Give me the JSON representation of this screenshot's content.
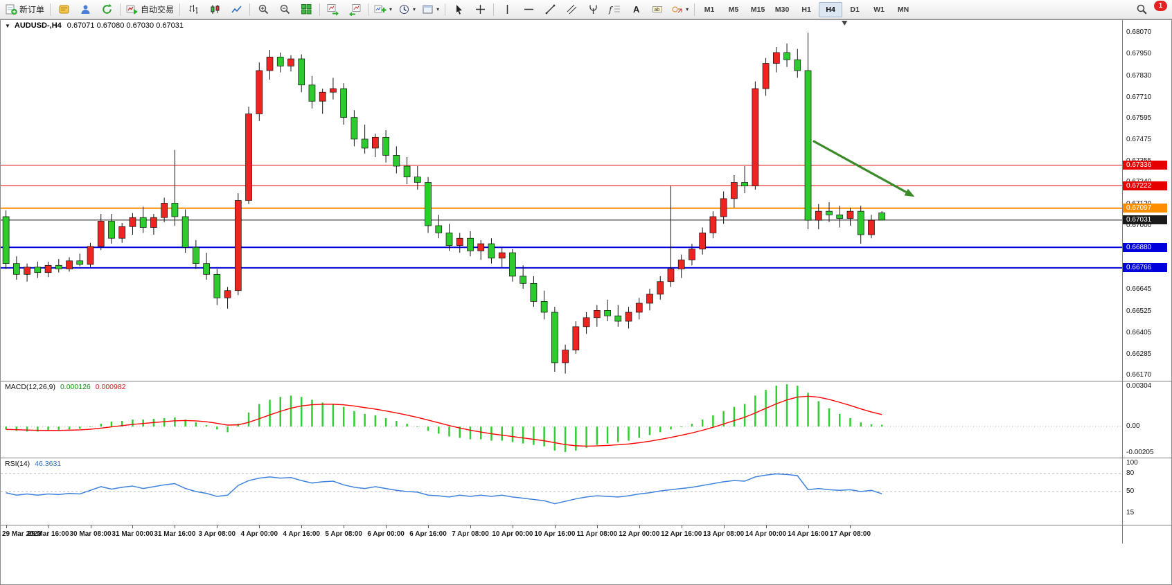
{
  "window": {
    "symbol": "AUDUSD-,H4",
    "quotes": "0.67071 0.67080 0.67030 0.67031"
  },
  "toolbar": {
    "items": [
      {
        "name": "new-order-button",
        "icon": "new-order",
        "label": "新订单"
      },
      {
        "sep": true
      },
      {
        "name": "metaeditor-button",
        "icon": "metaeditor"
      },
      {
        "name": "community-button",
        "icon": "community"
      },
      {
        "name": "refresh-button",
        "icon": "refresh"
      },
      {
        "sep": true
      },
      {
        "name": "auto-trading-button",
        "icon": "autotrade",
        "label": "自动交易"
      },
      {
        "sep": true
      },
      {
        "name": "bar-chart-button",
        "icon": "bars"
      },
      {
        "name": "candlestick-chart-button",
        "icon": "candles"
      },
      {
        "name": "line-chart-button",
        "icon": "linechart"
      },
      {
        "sep": true
      },
      {
        "name": "zoom-in-button",
        "icon": "zoomin"
      },
      {
        "name": "zoom-out-button",
        "icon": "zoomout"
      },
      {
        "name": "tile-windows-button",
        "icon": "tile"
      },
      {
        "sep": true
      },
      {
        "name": "auto-scroll-button",
        "icon": "autoscroll"
      },
      {
        "name": "chart-shift-button",
        "icon": "chartshift"
      },
      {
        "sep": true
      },
      {
        "name": "indicators-button",
        "icon": "indicators",
        "caret": true
      },
      {
        "name": "periods-button",
        "icon": "clock",
        "caret": true
      },
      {
        "name": "templates-button",
        "icon": "template",
        "caret": true
      },
      {
        "sep": true
      },
      {
        "name": "cursor-button",
        "icon": "cursor"
      },
      {
        "name": "crosshair-button",
        "icon": "crosshair"
      },
      {
        "sep": true
      },
      {
        "name": "vertical-line-button",
        "icon": "vline"
      },
      {
        "name": "horizontal-line-button",
        "icon": "hline"
      },
      {
        "name": "trendline-button",
        "icon": "trendline"
      },
      {
        "name": "channel-button",
        "icon": "channel"
      },
      {
        "name": "pitchfork-button",
        "icon": "pitchfork"
      },
      {
        "name": "fibonacci-button",
        "icon": "fibo"
      },
      {
        "name": "text-button",
        "icon": "text"
      },
      {
        "name": "text-label-button",
        "icon": "label"
      },
      {
        "name": "shapes-button",
        "icon": "shapes",
        "caret": true
      },
      {
        "sep": true
      }
    ],
    "timeframes": [
      "M1",
      "M5",
      "M15",
      "M30",
      "H1",
      "H4",
      "D1",
      "W1",
      "MN"
    ],
    "active_timeframe": "H4",
    "badge_count": "1"
  },
  "colors": {
    "up": "#ee2421",
    "down": "#2ecb2e",
    "wick": "#111111",
    "macd_hist": "#32cd32",
    "macd_signal": "#ff0000",
    "rsi": "#3c82dc",
    "arrow": "#3a8a28",
    "level_dash": "#b8b8b8"
  },
  "chart_data": {
    "type": "candlestick",
    "symbol": "AUDUSD",
    "timeframe": "H4",
    "price_view_max": 0.6814,
    "price_view_min": 0.6614,
    "candle_area_fraction": 0.79,
    "shift_marker_xf": 0.752,
    "price_axis_labels": [
      0.6807,
      0.6795,
      0.6783,
      0.6771,
      0.67595,
      0.67475,
      0.67355,
      0.6724,
      0.6712,
      0.67,
      0.6688,
      0.66765,
      0.66645,
      0.66525,
      0.66405,
      0.66285,
      0.6617
    ],
    "price_tags": [
      {
        "p": 0.67336,
        "c": "#e60000",
        "lw": 1
      },
      {
        "p": 0.67222,
        "c": "#e60000",
        "lw": 1
      },
      {
        "p": 0.67097,
        "c": "#ff8d00",
        "lw": 2
      },
      {
        "p": 0.67031,
        "c": "#1a1a1a",
        "lw": 1
      },
      {
        "p": 0.6688,
        "c": "#0000dd",
        "lw": 2
      },
      {
        "p": 0.66766,
        "c": "#0000dd",
        "lw": 2
      }
    ],
    "candles": [
      [
        0.6705,
        0.67085,
        0.6676,
        0.6679
      ],
      [
        0.6679,
        0.6683,
        0.667,
        0.6673
      ],
      [
        0.6673,
        0.6679,
        0.6669,
        0.6677
      ],
      [
        0.6677,
        0.668,
        0.6671,
        0.6674
      ],
      [
        0.6674,
        0.668,
        0.66715,
        0.6678
      ],
      [
        0.6678,
        0.66815,
        0.6674,
        0.6676
      ],
      [
        0.6676,
        0.66825,
        0.66745,
        0.66805
      ],
      [
        0.66805,
        0.66845,
        0.66775,
        0.66785
      ],
      [
        0.66785,
        0.66905,
        0.6677,
        0.66885
      ],
      [
        0.66885,
        0.67065,
        0.66865,
        0.67025
      ],
      [
        0.67025,
        0.67065,
        0.669,
        0.6693
      ],
      [
        0.6693,
        0.67015,
        0.66905,
        0.66995
      ],
      [
        0.66995,
        0.6707,
        0.6695,
        0.67045
      ],
      [
        0.67045,
        0.67105,
        0.6696,
        0.6699
      ],
      [
        0.6699,
        0.67065,
        0.6695,
        0.67045
      ],
      [
        0.67045,
        0.67155,
        0.6702,
        0.67125
      ],
      [
        0.67125,
        0.6742,
        0.67,
        0.6705
      ],
      [
        0.6705,
        0.6709,
        0.6685,
        0.6688
      ],
      [
        0.6688,
        0.6692,
        0.6676,
        0.6679
      ],
      [
        0.6679,
        0.6685,
        0.667,
        0.6673
      ],
      [
        0.6673,
        0.6676,
        0.6656,
        0.666
      ],
      [
        0.666,
        0.6666,
        0.6654,
        0.6664
      ],
      [
        0.6664,
        0.6718,
        0.66615,
        0.6714
      ],
      [
        0.6714,
        0.6766,
        0.6712,
        0.6762
      ],
      [
        0.6762,
        0.67905,
        0.6758,
        0.6786
      ],
      [
        0.6786,
        0.67975,
        0.6781,
        0.67935
      ],
      [
        0.67935,
        0.6796,
        0.6785,
        0.67885
      ],
      [
        0.67885,
        0.67945,
        0.67855,
        0.67925
      ],
      [
        0.67925,
        0.6795,
        0.6774,
        0.6778
      ],
      [
        0.6778,
        0.6783,
        0.6765,
        0.6769
      ],
      [
        0.6769,
        0.6776,
        0.6762,
        0.6774
      ],
      [
        0.6774,
        0.6782,
        0.677,
        0.6776
      ],
      [
        0.6776,
        0.6779,
        0.6756,
        0.676
      ],
      [
        0.676,
        0.6764,
        0.6744,
        0.6748
      ],
      [
        0.6748,
        0.6756,
        0.674,
        0.6743
      ],
      [
        0.6743,
        0.6751,
        0.6738,
        0.6749
      ],
      [
        0.6749,
        0.6753,
        0.6735,
        0.6739
      ],
      [
        0.6739,
        0.6744,
        0.6729,
        0.6733
      ],
      [
        0.6733,
        0.6738,
        0.6723,
        0.6727
      ],
      [
        0.6727,
        0.6733,
        0.672,
        0.6724
      ],
      [
        0.6724,
        0.6727,
        0.6696,
        0.67
      ],
      [
        0.67,
        0.6706,
        0.6693,
        0.6696
      ],
      [
        0.6696,
        0.6701,
        0.6686,
        0.6689
      ],
      [
        0.6689,
        0.6696,
        0.6685,
        0.6693
      ],
      [
        0.6693,
        0.6697,
        0.6683,
        0.6686
      ],
      [
        0.6686,
        0.6692,
        0.6681,
        0.669
      ],
      [
        0.669,
        0.6693,
        0.6679,
        0.6682
      ],
      [
        0.6682,
        0.6688,
        0.6677,
        0.6685
      ],
      [
        0.6685,
        0.6687,
        0.6669,
        0.6672
      ],
      [
        0.6672,
        0.6678,
        0.6665,
        0.6668
      ],
      [
        0.6668,
        0.6672,
        0.6655,
        0.6658
      ],
      [
        0.6658,
        0.6664,
        0.6648,
        0.6652
      ],
      [
        0.6652,
        0.6655,
        0.6619,
        0.6624
      ],
      [
        0.6624,
        0.6634,
        0.6618,
        0.6631
      ],
      [
        0.6631,
        0.6647,
        0.6629,
        0.6644
      ],
      [
        0.6644,
        0.6652,
        0.664,
        0.6649
      ],
      [
        0.6649,
        0.6656,
        0.6644,
        0.6653
      ],
      [
        0.6653,
        0.6659,
        0.6647,
        0.665
      ],
      [
        0.665,
        0.6656,
        0.6644,
        0.6647
      ],
      [
        0.6647,
        0.6655,
        0.6643,
        0.6652
      ],
      [
        0.6652,
        0.666,
        0.6648,
        0.6657
      ],
      [
        0.6657,
        0.6665,
        0.6653,
        0.6662
      ],
      [
        0.6662,
        0.6672,
        0.6659,
        0.6669
      ],
      [
        0.6669,
        0.6722,
        0.6666,
        0.6676
      ],
      [
        0.6676,
        0.6684,
        0.6671,
        0.6681
      ],
      [
        0.6681,
        0.669,
        0.6678,
        0.6687
      ],
      [
        0.6687,
        0.6699,
        0.6684,
        0.6696
      ],
      [
        0.6696,
        0.6708,
        0.6693,
        0.6705
      ],
      [
        0.6705,
        0.6719,
        0.6701,
        0.6715
      ],
      [
        0.6715,
        0.6728,
        0.671,
        0.6724
      ],
      [
        0.6724,
        0.6733,
        0.6718,
        0.6722
      ],
      [
        0.6722,
        0.678,
        0.672,
        0.6776
      ],
      [
        0.6776,
        0.6793,
        0.6772,
        0.679
      ],
      [
        0.679,
        0.6799,
        0.6785,
        0.6796
      ],
      [
        0.6796,
        0.6801,
        0.6788,
        0.6792
      ],
      [
        0.6792,
        0.6798,
        0.6782,
        0.6786
      ],
      [
        0.6786,
        0.6807,
        0.6698,
        0.6703
      ],
      [
        0.6703,
        0.6712,
        0.6698,
        0.6708
      ],
      [
        0.6708,
        0.6713,
        0.6702,
        0.6706
      ],
      [
        0.6706,
        0.6711,
        0.6699,
        0.6704
      ],
      [
        0.6704,
        0.671,
        0.67,
        0.6708
      ],
      [
        0.6708,
        0.6711,
        0.669,
        0.6695
      ],
      [
        0.6695,
        0.6706,
        0.6693,
        0.6703
      ],
      [
        0.67071,
        0.6708,
        0.6703,
        0.67031
      ]
    ],
    "time_labels": [
      {
        "i": 0,
        "t": "29 Mar 2023"
      },
      {
        "i": 4,
        "t": "29 Mar 16:00"
      },
      {
        "i": 8,
        "t": "30 Mar 08:00"
      },
      {
        "i": 12,
        "t": "31 Mar 00:00"
      },
      {
        "i": 16,
        "t": "31 Mar 16:00"
      },
      {
        "i": 20,
        "t": "3 Apr 08:00"
      },
      {
        "i": 24,
        "t": "4 Apr 00:00"
      },
      {
        "i": 28,
        "t": "4 Apr 16:00"
      },
      {
        "i": 32,
        "t": "5 Apr 08:00"
      },
      {
        "i": 36,
        "t": "6 Apr 00:00"
      },
      {
        "i": 40,
        "t": "6 Apr 16:00"
      },
      {
        "i": 44,
        "t": "7 Apr 08:00"
      },
      {
        "i": 48,
        "t": "10 Apr 00:00"
      },
      {
        "i": 52,
        "t": "10 Apr 16:00"
      },
      {
        "i": 56,
        "t": "11 Apr 08:00"
      },
      {
        "i": 60,
        "t": "12 Apr 00:00"
      },
      {
        "i": 64,
        "t": "12 Apr 16:00"
      },
      {
        "i": 68,
        "t": "13 Apr 08:00"
      },
      {
        "i": 72,
        "t": "14 Apr 00:00"
      },
      {
        "i": 76,
        "t": "14 Apr 16:00"
      },
      {
        "i": 80,
        "t": "17 Apr 08:00"
      }
    ],
    "arrow": {
      "x1f": 0.724,
      "p1": 0.6747,
      "x2f": 0.8145,
      "p2": 0.6716
    },
    "macd": {
      "name": "MACD(12,26,9)",
      "hist_value": "0.000126",
      "signal_value": "0.000982",
      "view_max": 0.0032,
      "view_min": -0.0022,
      "axis": [
        {
          "v": 0.00304,
          "t": "0.00304"
        },
        {
          "v": 0,
          "t": "0.00"
        },
        {
          "v": -0.00205,
          "t": "-0.00205"
        }
      ],
      "hist": [
        -0.0002,
        -0.0003,
        -0.00035,
        -0.00035,
        -0.0003,
        -0.00025,
        -0.0002,
        -0.00015,
        0.0,
        0.0002,
        0.00035,
        0.0004,
        0.0005,
        0.0005,
        0.00055,
        0.0006,
        0.00065,
        0.0005,
        0.0003,
        0.0001,
        -0.0002,
        -0.0004,
        0.0002,
        0.001,
        0.0016,
        0.0019,
        0.0021,
        0.0022,
        0.0021,
        0.0019,
        0.0017,
        0.0016,
        0.0014,
        0.0011,
        0.0009,
        0.0008,
        0.0006,
        0.0004,
        0.0002,
        0.0,
        -0.0003,
        -0.0005,
        -0.0007,
        -0.0008,
        -0.0009,
        -0.0009,
        -0.001,
        -0.001,
        -0.0011,
        -0.0012,
        -0.0013,
        -0.0014,
        -0.0017,
        -0.0018,
        -0.0017,
        -0.0015,
        -0.0013,
        -0.0012,
        -0.0011,
        -0.001,
        -0.0008,
        -0.0006,
        -0.0004,
        -0.0002,
        0.0,
        0.0002,
        0.0005,
        0.0008,
        0.0011,
        0.0014,
        0.0016,
        0.0022,
        0.0026,
        0.0029,
        0.003,
        0.0029,
        0.0024,
        0.0018,
        0.0013,
        0.0009,
        0.0006,
        0.0003,
        0.00016,
        0.000126
      ]
    },
    "rsi": {
      "name": "RSI(14)",
      "value": "46.3631",
      "axis": [
        {
          "v": 100,
          "t": "100"
        },
        {
          "v": 80,
          "t": "80"
        },
        {
          "v": 50,
          "t": "50"
        },
        {
          "v": 15,
          "t": "15"
        }
      ],
      "levels": [
        80,
        50
      ],
      "values": [
        48,
        44,
        46,
        44,
        46,
        45,
        47,
        46,
        52,
        58,
        54,
        57,
        59,
        55,
        58,
        61,
        63,
        55,
        50,
        47,
        42,
        44,
        60,
        68,
        72,
        74,
        72,
        73,
        68,
        64,
        66,
        67,
        61,
        57,
        55,
        58,
        55,
        52,
        50,
        49,
        44,
        43,
        41,
        44,
        42,
        44,
        42,
        44,
        41,
        39,
        37,
        35,
        30,
        34,
        38,
        41,
        43,
        42,
        41,
        43,
        46,
        48,
        51,
        53,
        55,
        57,
        60,
        63,
        66,
        68,
        67,
        74,
        77,
        79,
        78,
        76,
        53,
        55,
        53,
        52,
        53,
        50,
        52,
        46.3631
      ]
    }
  }
}
